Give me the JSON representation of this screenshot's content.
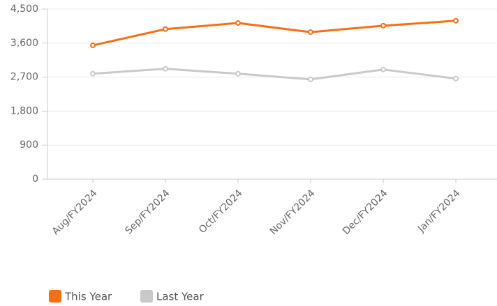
{
  "chart_data": {
    "type": "line",
    "categories": [
      "Aug/FY2024",
      "Sep/FY2024",
      "Oct/FY2024",
      "Nov/FY2024",
      "Dec/FY2024",
      "Jan/FY2024"
    ],
    "series": [
      {
        "name": "This Year",
        "color": "#f76f12",
        "values": [
          3540,
          3970,
          4130,
          3890,
          4060,
          4190
        ]
      },
      {
        "name": "Last Year",
        "color": "#c9c9c9",
        "values": [
          2790,
          2920,
          2790,
          2640,
          2900,
          2660
        ]
      }
    ],
    "ylim": [
      0,
      4500
    ],
    "yticks": [
      0,
      900,
      {
        "value": 1800,
        "label": "1,800"
      },
      {
        "value": 2700,
        "label": "2,700"
      },
      {
        "value": 3600,
        "label": "3,600"
      },
      {
        "value": 4500,
        "label": "4,500"
      }
    ],
    "grid": true,
    "legend": "bottom"
  }
}
